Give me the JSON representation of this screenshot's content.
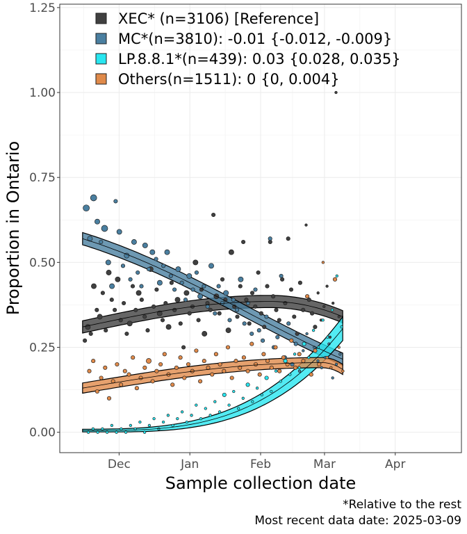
{
  "chart_data": {
    "type": "scatter",
    "xlabel": "Sample collection date",
    "ylabel": "Proportion in Ontario",
    "x_tick_labels": [
      "Dec",
      "Jan",
      "Feb",
      "Mar",
      "Apr"
    ],
    "x_ticks": [
      "2024-12-01",
      "2025-01-01",
      "2025-02-01",
      "2025-03-01",
      "2025-04-01"
    ],
    "xlim": [
      "2024-11-05",
      "2025-04-30"
    ],
    "y_tick_labels": [
      "0.00",
      "0.25",
      "0.50",
      "0.75",
      "1.00",
      "1.25"
    ],
    "y_ticks": [
      0,
      0.25,
      0.5,
      0.75,
      1.0,
      1.25
    ],
    "ylim": [
      -0.06,
      1.26
    ],
    "grid": true,
    "legend_position": "top-left inside",
    "caption": [
      "*Relative to the rest",
      "Most recent data date: 2025-03-09"
    ],
    "series": [
      {
        "label": "XEC* (n=3106)  [Reference]",
        "color": "#404040",
        "fit_start": 0.31,
        "fit_end": 0.34,
        "fit_peak": 0.385,
        "peak_date": "2025-02-05",
        "band": 0.018,
        "points": [
          [
            0.27,
            3
          ],
          [
            0.31,
            4
          ],
          [
            0.29,
            3
          ],
          [
            0.43,
            4
          ],
          [
            0.36,
            3
          ],
          [
            0.34,
            4
          ],
          [
            0.41,
            3
          ],
          [
            0.3,
            3
          ],
          [
            0.47,
            4
          ],
          [
            0.39,
            3
          ],
          [
            0.36,
            3
          ],
          [
            0.45,
            4
          ],
          [
            0.33,
            3
          ],
          [
            0.38,
            3
          ],
          [
            0.29,
            3
          ],
          [
            0.32,
            4
          ],
          [
            0.43,
            3
          ],
          [
            0.36,
            3
          ],
          [
            0.41,
            4
          ],
          [
            0.39,
            3
          ],
          [
            0.34,
            3
          ],
          [
            0.3,
            3
          ],
          [
            0.48,
            4
          ],
          [
            0.37,
            3
          ],
          [
            0.42,
            3
          ],
          [
            0.35,
            4
          ],
          [
            0.33,
            3
          ],
          [
            0.38,
            3
          ],
          [
            0.31,
            4
          ],
          [
            0.44,
            3
          ],
          [
            0.36,
            3
          ],
          [
            0.39,
            4
          ],
          [
            0.32,
            3
          ],
          [
            0.25,
            3
          ],
          [
            0.41,
            4
          ],
          [
            0.35,
            3
          ],
          [
            0.37,
            3
          ],
          [
            0.5,
            4
          ],
          [
            0.33,
            3
          ],
          [
            0.42,
            3
          ],
          [
            0.29,
            4
          ],
          [
            0.38,
            3
          ],
          [
            0.36,
            3
          ],
          [
            0.64,
            3
          ],
          [
            0.4,
            4
          ],
          [
            0.35,
            3
          ],
          [
            0.45,
            3
          ],
          [
            0.39,
            3
          ],
          [
            0.3,
            4
          ],
          [
            0.53,
            4
          ],
          [
            0.37,
            3
          ],
          [
            0.34,
            3
          ],
          [
            0.43,
            3
          ],
          [
            0.56,
            3
          ],
          [
            0.39,
            3
          ],
          [
            0.32,
            3
          ],
          [
            0.41,
            3
          ],
          [
            0.37,
            3
          ],
          [
            0.47,
            3
          ],
          [
            0.35,
            3
          ],
          [
            0.31,
            3
          ],
          [
            0.43,
            3
          ],
          [
            0.56,
            3
          ],
          [
            0.4,
            3
          ],
          [
            0.36,
            3
          ],
          [
            0.33,
            3
          ],
          [
            0.45,
            3
          ],
          [
            0.38,
            3
          ],
          [
            0.57,
            3
          ],
          [
            0.42,
            3
          ],
          [
            0.34,
            3
          ],
          [
            0.29,
            3
          ],
          [
            0.44,
            3
          ],
          [
            0.36,
            3
          ],
          [
            0.61,
            2
          ],
          [
            0.39,
            3
          ],
          [
            0.35,
            3
          ],
          [
            0.31,
            3
          ],
          [
            0.41,
            2
          ],
          [
            0.33,
            2
          ],
          [
            0.37,
            2
          ],
          [
            0.43,
            2
          ],
          [
            0.28,
            2
          ],
          [
            0.38,
            2
          ],
          [
            1.0,
            2
          ],
          [
            0.34,
            2
          ]
        ]
      },
      {
        "label": "MC*(n=3810): -0.01 {-0.012, -0.009}",
        "color": "#4a7fa0",
        "fit_start": 0.57,
        "fit_end": 0.215,
        "band": 0.018,
        "points": [
          [
            0.66,
            5
          ],
          [
            0.57,
            4
          ],
          [
            0.69,
            5
          ],
          [
            0.62,
            4
          ],
          [
            0.56,
            3
          ],
          [
            0.6,
            5
          ],
          [
            0.5,
            4
          ],
          [
            0.43,
            4
          ],
          [
            0.68,
            3
          ],
          [
            0.59,
            4
          ],
          [
            0.49,
            3
          ],
          [
            0.52,
            4
          ],
          [
            0.45,
            3
          ],
          [
            0.56,
            4
          ],
          [
            0.47,
            3
          ],
          [
            0.43,
            3
          ],
          [
            0.55,
            4
          ],
          [
            0.48,
            3
          ],
          [
            0.53,
            4
          ],
          [
            0.51,
            3
          ],
          [
            0.44,
            4
          ],
          [
            0.49,
            3
          ],
          [
            0.53,
            4
          ],
          [
            0.46,
            3
          ],
          [
            0.42,
            3
          ],
          [
            0.48,
            4
          ],
          [
            0.44,
            3
          ],
          [
            0.39,
            3
          ],
          [
            0.46,
            4
          ],
          [
            0.42,
            3
          ],
          [
            0.47,
            3
          ],
          [
            0.4,
            4
          ],
          [
            0.43,
            3
          ],
          [
            0.37,
            3
          ],
          [
            0.49,
            4
          ],
          [
            0.35,
            3
          ],
          [
            0.43,
            3
          ],
          [
            0.38,
            3
          ],
          [
            0.41,
            4
          ],
          [
            0.33,
            3
          ],
          [
            0.39,
            3
          ],
          [
            0.36,
            3
          ],
          [
            0.45,
            4
          ],
          [
            0.32,
            3
          ],
          [
            0.38,
            3
          ],
          [
            0.29,
            3
          ],
          [
            0.42,
            3
          ],
          [
            0.3,
            3
          ],
          [
            0.27,
            3
          ],
          [
            0.34,
            3
          ],
          [
            0.57,
            3
          ],
          [
            0.25,
            3
          ],
          [
            0.28,
            3
          ],
          [
            0.46,
            3
          ],
          [
            0.22,
            3
          ],
          [
            0.32,
            3
          ],
          [
            0.2,
            3
          ],
          [
            0.26,
            3
          ],
          [
            0.18,
            2
          ],
          [
            0.24,
            2
          ],
          [
            0.29,
            2
          ],
          [
            0.17,
            2
          ],
          [
            0.25,
            2
          ],
          [
            0.21,
            2
          ],
          [
            0.19,
            2
          ],
          [
            0.22,
            2
          ],
          [
            0.26,
            2
          ],
          [
            0.16,
            2
          ],
          [
            0.2,
            2
          ],
          [
            0.23,
            2
          ]
        ]
      },
      {
        "label": "LP.8.8.1*(n=439): 0.03 {0.028, 0.035}",
        "color": "#28e6f0",
        "fit_start": 0.005,
        "fit_end": 0.305,
        "band_start": 0.004,
        "band_end": 0.035,
        "points": [
          [
            0.0,
            2
          ],
          [
            0.01,
            2
          ],
          [
            0.0,
            2
          ],
          [
            0.01,
            2
          ],
          [
            0.0,
            2
          ],
          [
            0.02,
            2
          ],
          [
            0.0,
            2
          ],
          [
            0.01,
            2
          ],
          [
            0.0,
            2
          ],
          [
            0.02,
            2
          ],
          [
            0.01,
            2
          ],
          [
            0.03,
            2
          ],
          [
            0.0,
            2
          ],
          [
            0.02,
            2
          ],
          [
            0.04,
            2
          ],
          [
            0.01,
            2
          ],
          [
            0.03,
            2
          ],
          [
            0.05,
            2
          ],
          [
            0.02,
            2
          ],
          [
            0.04,
            2
          ],
          [
            0.06,
            2
          ],
          [
            0.03,
            2
          ],
          [
            0.05,
            2
          ],
          [
            0.08,
            2
          ],
          [
            0.04,
            2
          ],
          [
            0.07,
            2
          ],
          [
            0.05,
            2
          ],
          [
            0.09,
            2
          ],
          [
            0.06,
            2
          ],
          [
            0.11,
            3
          ],
          [
            0.08,
            2
          ],
          [
            0.12,
            2
          ],
          [
            0.07,
            2
          ],
          [
            0.1,
            2
          ],
          [
            0.14,
            3
          ],
          [
            0.09,
            2
          ],
          [
            0.13,
            2
          ],
          [
            0.11,
            2
          ],
          [
            0.16,
            3
          ],
          [
            0.12,
            2
          ],
          [
            0.18,
            2
          ],
          [
            0.15,
            2
          ],
          [
            0.21,
            3
          ],
          [
            0.17,
            2
          ],
          [
            0.23,
            2
          ],
          [
            0.19,
            2
          ],
          [
            0.26,
            3
          ],
          [
            0.22,
            2
          ],
          [
            0.3,
            2
          ],
          [
            0.25,
            2
          ],
          [
            0.33,
            2
          ],
          [
            0.28,
            2
          ],
          [
            0.36,
            2
          ],
          [
            0.46,
            2
          ],
          [
            0.31,
            2
          ]
        ]
      },
      {
        "label": "Others(n=1511): 0 {0, 0.004}",
        "color": "#e08a4a",
        "fit_start": 0.13,
        "fit_end": 0.185,
        "fit_peak": 0.205,
        "peak_date": "2025-02-28",
        "band": 0.015,
        "points": [
          [
            0.18,
            3
          ],
          [
            0.21,
            3
          ],
          [
            0.12,
            3
          ],
          [
            0.16,
            3
          ],
          [
            0.19,
            3
          ],
          [
            0.1,
            3
          ],
          [
            0.15,
            3
          ],
          [
            0.2,
            3
          ],
          [
            0.14,
            3
          ],
          [
            0.18,
            3
          ],
          [
            0.17,
            3
          ],
          [
            0.22,
            3
          ],
          [
            0.13,
            3
          ],
          [
            0.16,
            3
          ],
          [
            0.19,
            3
          ],
          [
            0.21,
            4
          ],
          [
            0.15,
            3
          ],
          [
            0.18,
            3
          ],
          [
            0.2,
            3
          ],
          [
            0.23,
            3
          ],
          [
            0.17,
            3
          ],
          [
            0.14,
            3
          ],
          [
            0.19,
            3
          ],
          [
            0.22,
            3
          ],
          [
            0.16,
            3
          ],
          [
            0.2,
            3
          ],
          [
            0.18,
            3
          ],
          [
            0.24,
            3
          ],
          [
            0.15,
            3
          ],
          [
            0.21,
            3
          ],
          [
            0.19,
            3
          ],
          [
            0.17,
            3
          ],
          [
            0.23,
            3
          ],
          [
            0.2,
            3
          ],
          [
            0.18,
            3
          ],
          [
            0.25,
            3
          ],
          [
            0.16,
            3
          ],
          [
            0.21,
            3
          ],
          [
            0.19,
            3
          ],
          [
            0.22,
            3
          ],
          [
            0.18,
            3
          ],
          [
            0.26,
            3
          ],
          [
            0.2,
            3
          ],
          [
            0.17,
            3
          ],
          [
            0.23,
            3
          ],
          [
            0.21,
            3
          ],
          [
            0.19,
            3
          ],
          [
            0.25,
            3
          ],
          [
            0.18,
            3
          ],
          [
            0.22,
            3
          ],
          [
            0.2,
            3
          ],
          [
            0.27,
            3
          ],
          [
            0.19,
            3
          ],
          [
            0.23,
            3
          ],
          [
            0.21,
            3
          ],
          [
            0.4,
            3
          ],
          [
            0.17,
            3
          ],
          [
            0.24,
            3
          ],
          [
            0.2,
            3
          ],
          [
            0.5,
            2
          ],
          [
            0.22,
            2
          ],
          [
            0.19,
            2
          ],
          [
            0.45,
            3
          ],
          [
            0.25,
            2
          ],
          [
            0.18,
            2
          ]
        ]
      }
    ]
  }
}
